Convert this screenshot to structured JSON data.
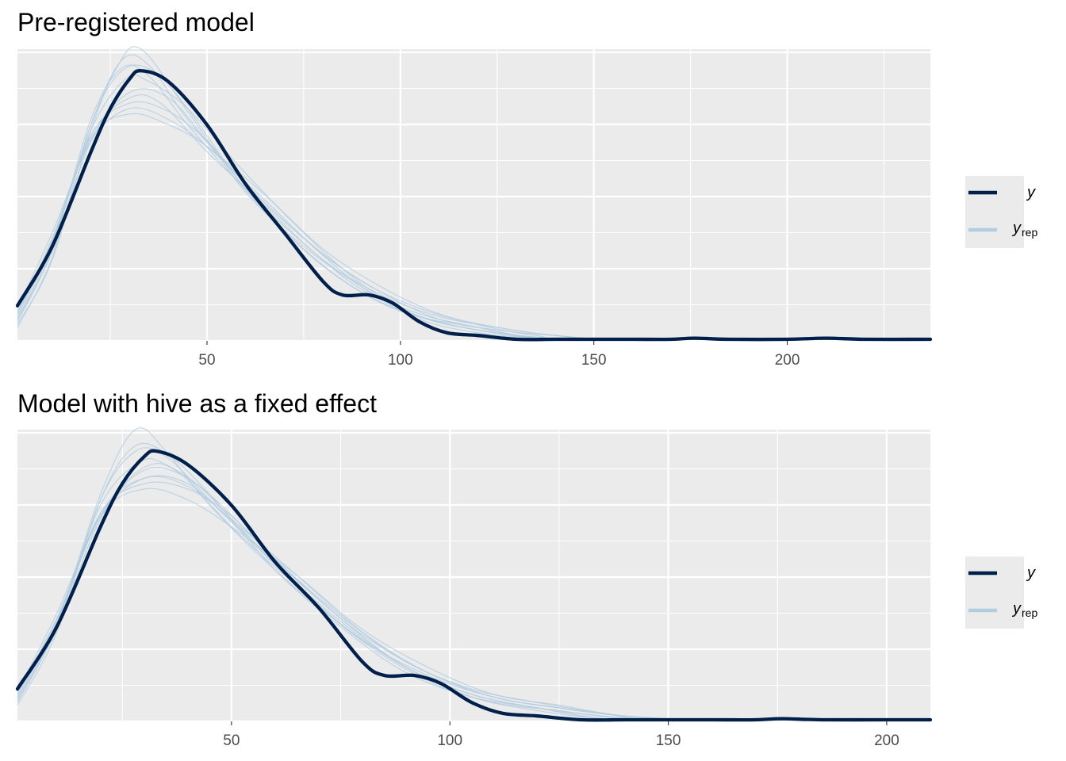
{
  "chart_data": [
    {
      "type": "line",
      "chart_kind": "density overlay (posterior predictive check)",
      "title": "Pre-registered model",
      "xlabel": "",
      "ylabel": "",
      "xlim": [
        1,
        237
      ],
      "ylim": [
        0,
        1.08
      ],
      "x_ticks": [
        50,
        100,
        150,
        200
      ],
      "y_ticks_shown": false,
      "grid": true,
      "legend": {
        "placement": "right",
        "entries": [
          {
            "label": "y",
            "subscript": ""
          },
          {
            "label": "y",
            "subscript": "rep"
          }
        ]
      },
      "colors": {
        "y": "#011f4b",
        "y_rep": "#b3cde0",
        "panel": "#ebebeb",
        "grid": "#ffffff"
      },
      "series": [
        {
          "name": "y",
          "role": "observed",
          "x": [
            1,
            10,
            20,
            25,
            30,
            33,
            40,
            50,
            60,
            70,
            80,
            85,
            92,
            98,
            105,
            112,
            120,
            130,
            140,
            150,
            160,
            170,
            176,
            185,
            200,
            210,
            220,
            237
          ],
          "values": [
            0.13,
            0.35,
            0.7,
            0.86,
            0.97,
            1.0,
            0.96,
            0.8,
            0.58,
            0.4,
            0.22,
            0.17,
            0.17,
            0.14,
            0.07,
            0.03,
            0.02,
            0.005,
            0.005,
            0.005,
            0.0,
            0.005,
            0.01,
            0.0,
            0.005,
            0.01,
            0.0,
            0.0
          ]
        },
        {
          "name": "y_rep",
          "role": "replicated",
          "draws": [
            {
              "x": [
                1,
                10,
                20,
                28,
                35,
                45,
                60,
                75,
                90,
                105,
                120,
                135,
                150,
                237
              ],
              "values": [
                0.08,
                0.35,
                0.8,
                1.04,
                1.02,
                0.82,
                0.58,
                0.38,
                0.2,
                0.08,
                0.03,
                0.01,
                0.0,
                0.0
              ]
            },
            {
              "x": [
                1,
                10,
                20,
                27,
                33,
                45,
                60,
                75,
                90,
                105,
                120,
                135,
                150,
                237
              ],
              "values": [
                0.06,
                0.3,
                0.78,
                1.02,
                1.08,
                0.85,
                0.55,
                0.35,
                0.2,
                0.09,
                0.04,
                0.01,
                0.0,
                0.0
              ]
            },
            {
              "x": [
                1,
                10,
                20,
                30,
                40,
                50,
                65,
                80,
                95,
                110,
                125,
                140,
                160,
                237
              ],
              "values": [
                0.12,
                0.4,
                0.74,
                0.86,
                0.82,
                0.72,
                0.52,
                0.32,
                0.18,
                0.08,
                0.04,
                0.02,
                0.005,
                0.0
              ]
            },
            {
              "x": [
                1,
                10,
                20,
                30,
                38,
                50,
                65,
                80,
                95,
                110,
                125,
                140,
                160,
                237
              ],
              "values": [
                0.1,
                0.38,
                0.76,
                0.9,
                0.88,
                0.7,
                0.5,
                0.3,
                0.17,
                0.09,
                0.05,
                0.02,
                0.005,
                0.0
              ]
            },
            {
              "x": [
                1,
                10,
                20,
                28,
                35,
                45,
                60,
                75,
                90,
                105,
                120,
                135,
                150,
                237
              ],
              "values": [
                0.07,
                0.34,
                0.82,
                1.01,
                0.98,
                0.8,
                0.56,
                0.36,
                0.19,
                0.1,
                0.05,
                0.01,
                0.0,
                0.0
              ]
            },
            {
              "x": [
                1,
                10,
                20,
                29,
                35,
                45,
                60,
                75,
                90,
                105,
                120,
                135,
                150,
                237
              ],
              "values": [
                0.09,
                0.36,
                0.78,
                0.97,
                0.96,
                0.86,
                0.62,
                0.4,
                0.21,
                0.09,
                0.04,
                0.01,
                0.0,
                0.0
              ]
            },
            {
              "x": [
                1,
                10,
                20,
                30,
                40,
                50,
                60,
                75,
                90,
                105,
                120,
                135,
                150,
                237
              ],
              "values": [
                0.11,
                0.37,
                0.76,
                0.88,
                0.85,
                0.74,
                0.58,
                0.38,
                0.22,
                0.12,
                0.06,
                0.02,
                0.005,
                0.0
              ]
            },
            {
              "x": [
                1,
                10,
                20,
                30,
                40,
                50,
                62,
                78,
                95,
                110,
                125,
                140,
                160,
                237
              ],
              "values": [
                0.08,
                0.33,
                0.74,
                0.92,
                0.9,
                0.74,
                0.53,
                0.3,
                0.14,
                0.07,
                0.03,
                0.01,
                0.0,
                0.0
              ]
            },
            {
              "x": [
                1,
                10,
                20,
                28,
                36,
                45,
                60,
                75,
                90,
                105,
                120,
                135,
                150,
                237
              ],
              "values": [
                0.05,
                0.31,
                0.8,
                1.0,
                1.0,
                0.86,
                0.56,
                0.34,
                0.18,
                0.09,
                0.05,
                0.01,
                0.0,
                0.0
              ]
            },
            {
              "x": [
                1,
                10,
                20,
                30,
                40,
                50,
                65,
                80,
                95,
                110,
                125,
                140,
                160,
                237
              ],
              "values": [
                0.1,
                0.37,
                0.75,
                0.84,
                0.8,
                0.72,
                0.54,
                0.34,
                0.2,
                0.1,
                0.05,
                0.02,
                0.005,
                0.0
              ]
            }
          ]
        }
      ]
    },
    {
      "type": "line",
      "chart_kind": "density overlay (posterior predictive check)",
      "title": "Model with hive as a fixed effect",
      "xlabel": "",
      "ylabel": "",
      "xlim": [
        1,
        210
      ],
      "ylim": [
        0,
        1.08
      ],
      "x_ticks": [
        50,
        100,
        150,
        200
      ],
      "y_ticks_shown": false,
      "grid": true,
      "legend": {
        "placement": "right",
        "entries": [
          {
            "label": "y",
            "subscript": ""
          },
          {
            "label": "y",
            "subscript": "rep"
          }
        ]
      },
      "colors": {
        "y": "#011f4b",
        "y_rep": "#b3cde0",
        "panel": "#ebebeb",
        "grid": "#ffffff"
      },
      "series": [
        {
          "name": "y",
          "role": "observed",
          "x": [
            1,
            10,
            20,
            25,
            30,
            33,
            40,
            50,
            60,
            70,
            80,
            85,
            92,
            98,
            105,
            112,
            120,
            130,
            140,
            150,
            160,
            170,
            176,
            185,
            200,
            210
          ],
          "values": [
            0.12,
            0.35,
            0.72,
            0.88,
            0.98,
            1.0,
            0.95,
            0.8,
            0.59,
            0.42,
            0.22,
            0.17,
            0.17,
            0.14,
            0.07,
            0.03,
            0.02,
            0.005,
            0.005,
            0.005,
            0.0,
            0.005,
            0.01,
            0.0,
            0.0,
            0.005
          ]
        },
        {
          "name": "y_rep",
          "role": "replicated",
          "draws": [
            {
              "x": [
                1,
                10,
                20,
                28,
                35,
                45,
                60,
                75,
                90,
                105,
                120,
                135,
                150,
                210
              ],
              "values": [
                0.08,
                0.36,
                0.84,
                1.08,
                1.0,
                0.8,
                0.56,
                0.36,
                0.2,
                0.09,
                0.04,
                0.01,
                0.0,
                0.0
              ]
            },
            {
              "x": [
                1,
                10,
                20,
                28,
                35,
                45,
                60,
                75,
                90,
                105,
                120,
                135,
                150,
                210
              ],
              "values": [
                0.07,
                0.35,
                0.82,
                1.0,
                0.98,
                0.82,
                0.58,
                0.37,
                0.2,
                0.1,
                0.05,
                0.02,
                0.0,
                0.0
              ]
            },
            {
              "x": [
                1,
                10,
                20,
                30,
                40,
                50,
                65,
                80,
                95,
                110,
                125,
                140,
                160,
                210
              ],
              "values": [
                0.11,
                0.4,
                0.76,
                0.9,
                0.88,
                0.74,
                0.52,
                0.32,
                0.18,
                0.09,
                0.05,
                0.02,
                0.005,
                0.0
              ]
            },
            {
              "x": [
                1,
                10,
                20,
                30,
                38,
                50,
                65,
                80,
                95,
                110,
                125,
                140,
                160,
                210
              ],
              "values": [
                0.1,
                0.38,
                0.76,
                0.94,
                0.92,
                0.72,
                0.5,
                0.3,
                0.17,
                0.09,
                0.05,
                0.02,
                0.005,
                0.0
              ]
            },
            {
              "x": [
                1,
                10,
                20,
                29,
                35,
                45,
                60,
                75,
                90,
                105,
                120,
                135,
                150,
                210
              ],
              "values": [
                0.09,
                0.37,
                0.8,
                0.96,
                0.95,
                0.84,
                0.6,
                0.38,
                0.2,
                0.1,
                0.05,
                0.01,
                0.0,
                0.0
              ]
            },
            {
              "x": [
                1,
                10,
                20,
                30,
                40,
                50,
                60,
                75,
                90,
                105,
                120,
                135,
                150,
                210
              ],
              "values": [
                0.11,
                0.38,
                0.77,
                0.88,
                0.86,
                0.76,
                0.6,
                0.39,
                0.22,
                0.12,
                0.07,
                0.03,
                0.005,
                0.0
              ]
            },
            {
              "x": [
                1,
                10,
                20,
                30,
                40,
                50,
                62,
                78,
                95,
                110,
                125,
                140,
                160,
                210
              ],
              "values": [
                0.08,
                0.34,
                0.75,
                0.93,
                0.9,
                0.75,
                0.55,
                0.32,
                0.15,
                0.07,
                0.04,
                0.01,
                0.0,
                0.0
              ]
            },
            {
              "x": [
                1,
                10,
                20,
                28,
                36,
                45,
                60,
                75,
                90,
                105,
                120,
                135,
                150,
                210
              ],
              "values": [
                0.06,
                0.33,
                0.82,
                1.02,
                0.98,
                0.84,
                0.56,
                0.35,
                0.18,
                0.09,
                0.05,
                0.01,
                0.0,
                0.0
              ]
            },
            {
              "x": [
                1,
                10,
                20,
                30,
                40,
                50,
                65,
                80,
                95,
                110,
                125,
                140,
                160,
                210
              ],
              "values": [
                0.1,
                0.38,
                0.76,
                0.86,
                0.82,
                0.72,
                0.54,
                0.34,
                0.2,
                0.1,
                0.06,
                0.02,
                0.005,
                0.0
              ]
            },
            {
              "x": [
                1,
                10,
                20,
                30,
                40,
                52,
                65,
                80,
                95,
                110,
                125,
                140,
                160,
                210
              ],
              "values": [
                0.09,
                0.36,
                0.77,
                0.9,
                0.87,
                0.72,
                0.54,
                0.33,
                0.18,
                0.09,
                0.05,
                0.02,
                0.005,
                0.0
              ]
            }
          ]
        }
      ]
    }
  ]
}
